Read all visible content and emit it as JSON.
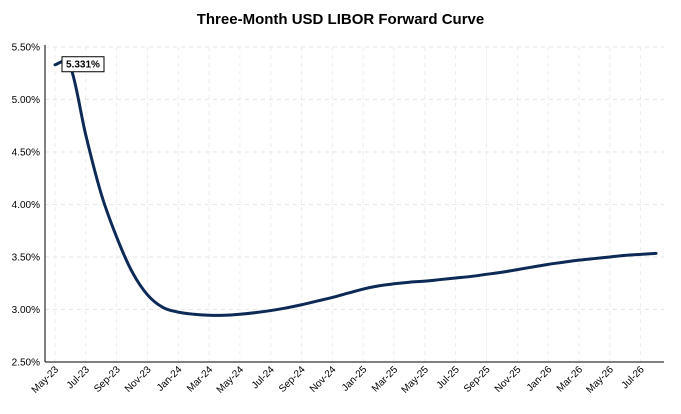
{
  "chart_data": {
    "type": "line",
    "title": "Three-Month USD LIBOR Forward Curve",
    "xlabel": "",
    "ylabel": "",
    "ylim": [
      2.5,
      5.5
    ],
    "yticks": [
      2.5,
      3.0,
      3.5,
      4.0,
      4.5,
      5.0,
      5.5
    ],
    "ytick_labels": [
      "2.50%",
      "3.00%",
      "3.50%",
      "4.00%",
      "4.50%",
      "5.00%",
      "5.50%"
    ],
    "x_tick_labels": [
      "May-23",
      "Jul-23",
      "Sep-23",
      "Nov-23",
      "Jan-24",
      "Mar-24",
      "May-24",
      "Jul-24",
      "Sep-24",
      "Nov-24",
      "Jan-25",
      "Mar-25",
      "May-25",
      "Jul-25",
      "Sep-25",
      "Nov-25",
      "Jan-26",
      "Mar-26",
      "May-26",
      "Jul-26"
    ],
    "grid": true,
    "line_color": "#0d2a57",
    "series": [
      {
        "x": [
          "May-23",
          "Jun-23",
          "Jul-23",
          "Aug-23",
          "Sep-23",
          "Oct-23",
          "Nov-23",
          "Dec-23",
          "Jan-24",
          "Feb-24",
          "Mar-24",
          "Apr-24",
          "May-24",
          "Jun-24",
          "Jul-24",
          "Aug-24",
          "Sep-24",
          "Oct-24",
          "Nov-24",
          "Dec-24",
          "Jan-25",
          "Feb-25",
          "Mar-25",
          "Apr-25",
          "May-25",
          "Jun-25",
          "Jul-25",
          "Aug-25",
          "Sep-25",
          "Oct-25",
          "Nov-25",
          "Dec-25",
          "Jan-26",
          "Feb-26",
          "Mar-26",
          "Apr-26",
          "May-26",
          "Jun-26",
          "Jul-26",
          "Aug-26"
        ],
        "values": [
          5.331,
          5.31,
          4.66,
          4.1,
          3.69,
          3.36,
          3.14,
          3.02,
          2.975,
          2.955,
          2.945,
          2.945,
          2.955,
          2.97,
          2.99,
          3.015,
          3.045,
          3.08,
          3.115,
          3.155,
          3.195,
          3.225,
          3.245,
          3.26,
          3.27,
          3.285,
          3.3,
          3.315,
          3.335,
          3.355,
          3.38,
          3.405,
          3.43,
          3.45,
          3.47,
          3.485,
          3.5,
          3.515,
          3.525,
          3.535
        ]
      }
    ],
    "annotation": {
      "text": "5.331%",
      "x": "May-23",
      "value": 5.331
    }
  }
}
